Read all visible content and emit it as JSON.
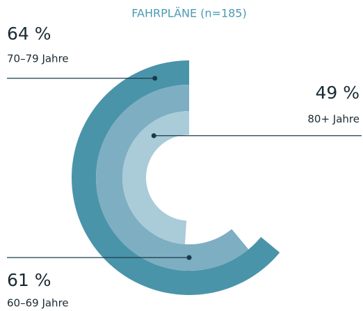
{
  "chart_data": {
    "type": "radial_bar",
    "title": "FAHRPLÄNE (n=185)",
    "categories": [
      "70–79 Jahre",
      "60–69 Jahre",
      "80+ Jahre"
    ],
    "values": [
      64,
      61,
      49
    ],
    "value_labels": [
      "64 %",
      "61 %",
      "49 %"
    ],
    "colors": [
      "#4a94aa",
      "#7eaec2",
      "#aacbd8"
    ],
    "ylim": [
      0,
      100
    ]
  }
}
